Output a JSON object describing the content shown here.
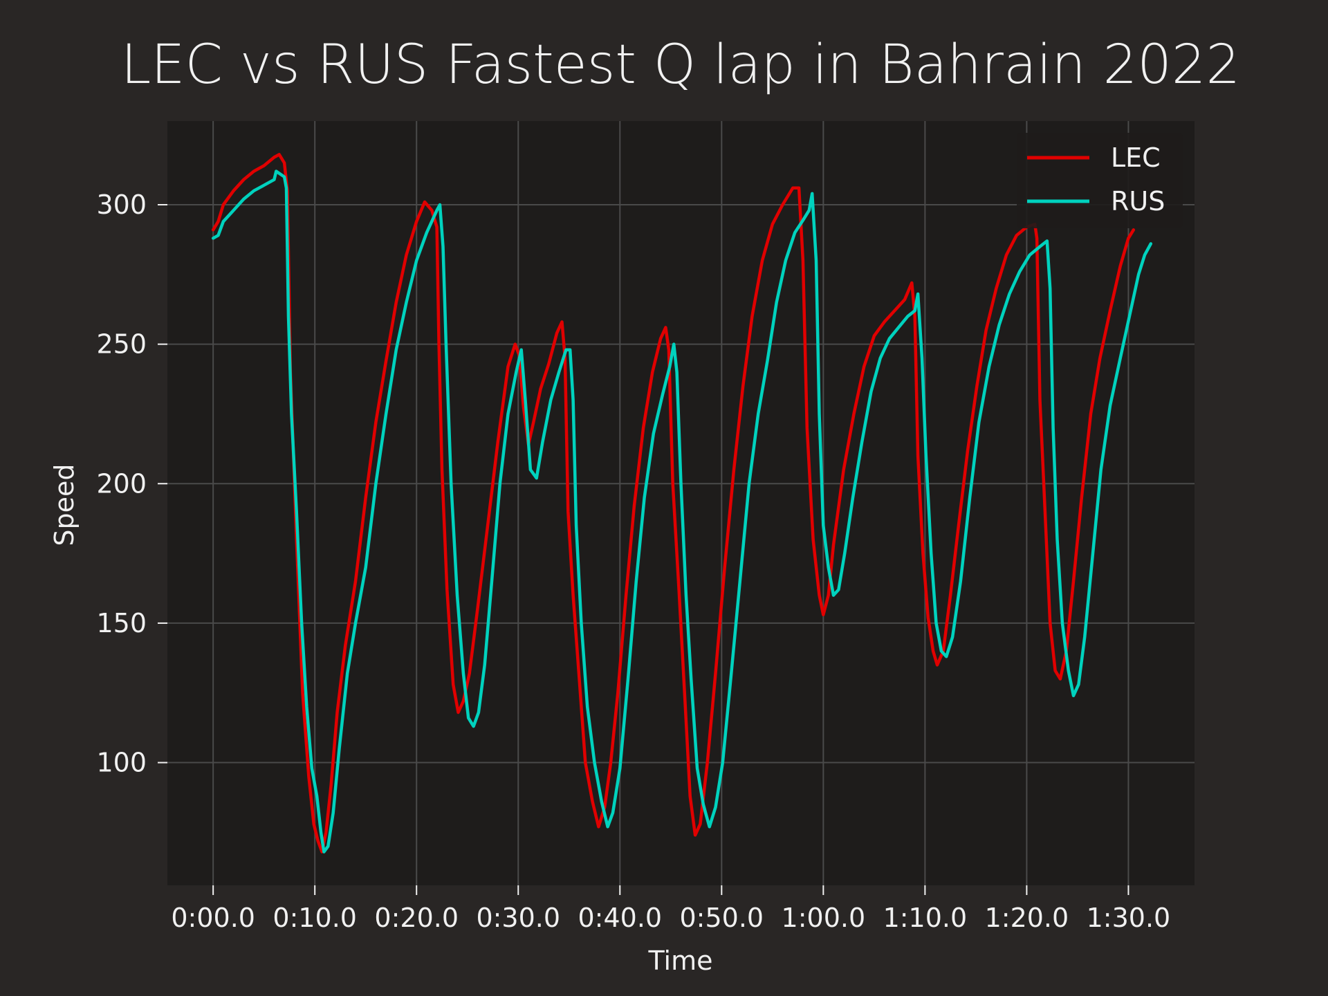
{
  "chart_data": {
    "type": "line",
    "title": "LEC vs RUS Fastest Q lap in Bahrain 2022",
    "xlabel": "Time",
    "ylabel": "Speed",
    "x_unit": "seconds",
    "xlim": [
      -4.5,
      96.5
    ],
    "ylim": [
      56,
      330
    ],
    "xticks": [
      0,
      10,
      20,
      30,
      40,
      50,
      60,
      70,
      80,
      90
    ],
    "xtick_labels": [
      "0:00.0",
      "0:10.0",
      "0:20.0",
      "0:30.0",
      "0:40.0",
      "0:50.0",
      "1:00.0",
      "1:10.0",
      "1:20.0",
      "1:30.0"
    ],
    "yticks": [
      100,
      150,
      200,
      250,
      300
    ],
    "ytick_labels": [
      "100",
      "150",
      "200",
      "250",
      "300"
    ],
    "grid": true,
    "legend_position": "top-right",
    "series": [
      {
        "name": "LEC",
        "color": "#e00000",
        "points": [
          [
            0,
            291
          ],
          [
            0.5,
            294
          ],
          [
            1,
            300
          ],
          [
            2,
            305
          ],
          [
            3,
            309
          ],
          [
            4,
            312
          ],
          [
            5,
            314
          ],
          [
            6,
            317
          ],
          [
            6.5,
            318
          ],
          [
            7,
            315
          ],
          [
            7.3,
            305
          ],
          [
            7.6,
            240
          ],
          [
            8.2,
            180
          ],
          [
            8.8,
            125
          ],
          [
            9.4,
            95
          ],
          [
            9.9,
            78
          ],
          [
            10.3,
            72
          ],
          [
            10.7,
            68
          ],
          [
            11.1,
            75
          ],
          [
            11.6,
            92
          ],
          [
            12.2,
            118
          ],
          [
            13,
            142
          ],
          [
            14,
            165
          ],
          [
            15,
            195
          ],
          [
            16,
            222
          ],
          [
            17,
            244
          ],
          [
            18,
            265
          ],
          [
            19,
            282
          ],
          [
            20,
            294
          ],
          [
            20.8,
            301
          ],
          [
            21.5,
            298
          ],
          [
            22,
            292
          ],
          [
            22.2,
            250
          ],
          [
            22.5,
            205
          ],
          [
            23,
            162
          ],
          [
            23.6,
            128
          ],
          [
            24.1,
            118
          ],
          [
            24.6,
            122
          ],
          [
            25.2,
            132
          ],
          [
            26,
            155
          ],
          [
            27,
            185
          ],
          [
            28,
            215
          ],
          [
            29,
            242
          ],
          [
            29.7,
            250
          ],
          [
            30.1,
            246
          ],
          [
            30.5,
            228
          ],
          [
            31,
            214
          ],
          [
            31.5,
            222
          ],
          [
            32.2,
            234
          ],
          [
            33,
            243
          ],
          [
            33.8,
            254
          ],
          [
            34.3,
            258
          ],
          [
            34.6,
            245
          ],
          [
            34.9,
            190
          ],
          [
            35.4,
            160
          ],
          [
            36,
            130
          ],
          [
            36.6,
            100
          ],
          [
            37.3,
            86
          ],
          [
            37.9,
            77
          ],
          [
            38.5,
            84
          ],
          [
            39.1,
            100
          ],
          [
            39.8,
            125
          ],
          [
            40.6,
            160
          ],
          [
            41.4,
            192
          ],
          [
            42.3,
            220
          ],
          [
            43.2,
            240
          ],
          [
            44,
            252
          ],
          [
            44.5,
            256
          ],
          [
            44.8,
            248
          ],
          [
            45.2,
            200
          ],
          [
            45.8,
            162
          ],
          [
            46.4,
            122
          ],
          [
            46.9,
            88
          ],
          [
            47.4,
            74
          ],
          [
            47.9,
            78
          ],
          [
            48.6,
            100
          ],
          [
            49.4,
            132
          ],
          [
            50.3,
            170
          ],
          [
            51.2,
            205
          ],
          [
            52.1,
            235
          ],
          [
            53,
            260
          ],
          [
            54,
            280
          ],
          [
            55,
            293
          ],
          [
            56,
            300
          ],
          [
            57,
            306
          ],
          [
            57.6,
            306
          ],
          [
            58,
            280
          ],
          [
            58.4,
            220
          ],
          [
            59,
            180
          ],
          [
            59.6,
            160
          ],
          [
            60,
            153
          ],
          [
            60.5,
            160
          ],
          [
            61,
            178
          ],
          [
            62,
            205
          ],
          [
            63,
            225
          ],
          [
            64,
            242
          ],
          [
            65,
            253
          ],
          [
            66,
            258
          ],
          [
            67,
            262
          ],
          [
            68,
            266
          ],
          [
            68.7,
            272
          ],
          [
            69,
            260
          ],
          [
            69.3,
            210
          ],
          [
            69.8,
            175
          ],
          [
            70.3,
            152
          ],
          [
            70.8,
            140
          ],
          [
            71.2,
            135
          ],
          [
            71.8,
            140
          ],
          [
            72.5,
            160
          ],
          [
            73.3,
            185
          ],
          [
            74.2,
            212
          ],
          [
            75.1,
            235
          ],
          [
            76,
            255
          ],
          [
            77,
            270
          ],
          [
            78,
            282
          ],
          [
            79,
            289
          ],
          [
            80,
            292
          ],
          [
            80.8,
            293
          ],
          [
            81,
            288
          ],
          [
            81.3,
            230
          ],
          [
            81.8,
            190
          ],
          [
            82.3,
            150
          ],
          [
            82.8,
            133
          ],
          [
            83.3,
            130
          ],
          [
            83.9,
            140
          ],
          [
            84.6,
            165
          ],
          [
            85.4,
            195
          ],
          [
            86.3,
            225
          ],
          [
            87.2,
            245
          ],
          [
            88.2,
            262
          ],
          [
            89.2,
            278
          ],
          [
            90,
            288
          ],
          [
            90.5,
            291
          ]
        ]
      },
      {
        "name": "RUS",
        "color": "#00d2be",
        "points": [
          [
            0,
            288
          ],
          [
            0.5,
            289
          ],
          [
            1,
            294
          ],
          [
            2,
            298
          ],
          [
            3,
            302
          ],
          [
            4,
            305
          ],
          [
            5,
            307
          ],
          [
            6,
            309
          ],
          [
            6.2,
            312
          ],
          [
            7,
            310
          ],
          [
            7.2,
            306
          ],
          [
            7.4,
            260
          ],
          [
            7.7,
            225
          ],
          [
            8.2,
            190
          ],
          [
            8.7,
            150
          ],
          [
            9.2,
            120
          ],
          [
            9.7,
            98
          ],
          [
            10.2,
            88
          ],
          [
            10.6,
            75
          ],
          [
            10.9,
            68
          ],
          [
            11.3,
            70
          ],
          [
            11.8,
            82
          ],
          [
            12.4,
            105
          ],
          [
            13.2,
            132
          ],
          [
            14,
            150
          ],
          [
            15,
            170
          ],
          [
            16,
            200
          ],
          [
            17,
            225
          ],
          [
            18,
            248
          ],
          [
            19,
            265
          ],
          [
            20,
            280
          ],
          [
            21,
            290
          ],
          [
            22,
            298
          ],
          [
            22.3,
            300
          ],
          [
            22.6,
            285
          ],
          [
            22.9,
            250
          ],
          [
            23.4,
            200
          ],
          [
            24,
            160
          ],
          [
            24.6,
            132
          ],
          [
            25.1,
            116
          ],
          [
            25.6,
            113
          ],
          [
            26.1,
            118
          ],
          [
            26.7,
            135
          ],
          [
            27.4,
            165
          ],
          [
            28.2,
            200
          ],
          [
            29,
            225
          ],
          [
            29.8,
            240
          ],
          [
            30.3,
            248
          ],
          [
            30.7,
            230
          ],
          [
            31.2,
            205
          ],
          [
            31.8,
            202
          ],
          [
            32.4,
            215
          ],
          [
            33.2,
            230
          ],
          [
            34,
            240
          ],
          [
            34.7,
            248
          ],
          [
            35.1,
            248
          ],
          [
            35.4,
            230
          ],
          [
            35.7,
            185
          ],
          [
            36.2,
            150
          ],
          [
            36.8,
            120
          ],
          [
            37.5,
            100
          ],
          [
            38.2,
            86
          ],
          [
            38.8,
            77
          ],
          [
            39.3,
            82
          ],
          [
            40,
            98
          ],
          [
            40.8,
            130
          ],
          [
            41.6,
            165
          ],
          [
            42.4,
            195
          ],
          [
            43.3,
            218
          ],
          [
            44.2,
            232
          ],
          [
            44.9,
            242
          ],
          [
            45.3,
            250
          ],
          [
            45.6,
            240
          ],
          [
            46,
            200
          ],
          [
            46.5,
            160
          ],
          [
            47,
            130
          ],
          [
            47.6,
            98
          ],
          [
            48.2,
            85
          ],
          [
            48.8,
            77
          ],
          [
            49.4,
            84
          ],
          [
            50.1,
            100
          ],
          [
            50.9,
            130
          ],
          [
            51.8,
            165
          ],
          [
            52.7,
            200
          ],
          [
            53.6,
            225
          ],
          [
            54.5,
            244
          ],
          [
            55.4,
            265
          ],
          [
            56.3,
            280
          ],
          [
            57.2,
            290
          ],
          [
            58.1,
            295
          ],
          [
            58.6,
            298
          ],
          [
            58.9,
            304
          ],
          [
            59.3,
            280
          ],
          [
            59.6,
            225
          ],
          [
            60,
            185
          ],
          [
            60.5,
            170
          ],
          [
            61,
            160
          ],
          [
            61.5,
            162
          ],
          [
            62.1,
            175
          ],
          [
            62.9,
            195
          ],
          [
            63.8,
            215
          ],
          [
            64.7,
            233
          ],
          [
            65.6,
            245
          ],
          [
            66.5,
            252
          ],
          [
            67.4,
            256
          ],
          [
            68.3,
            260
          ],
          [
            69,
            262
          ],
          [
            69.3,
            268
          ],
          [
            69.7,
            245
          ],
          [
            70.1,
            210
          ],
          [
            70.6,
            175
          ],
          [
            71.1,
            150
          ],
          [
            71.6,
            140
          ],
          [
            72.1,
            138
          ],
          [
            72.7,
            145
          ],
          [
            73.5,
            165
          ],
          [
            74.4,
            195
          ],
          [
            75.3,
            222
          ],
          [
            76.3,
            242
          ],
          [
            77.3,
            257
          ],
          [
            78.3,
            268
          ],
          [
            79.3,
            276
          ],
          [
            80.3,
            282
          ],
          [
            81.3,
            285
          ],
          [
            82,
            287
          ],
          [
            82.3,
            270
          ],
          [
            82.6,
            220
          ],
          [
            83,
            180
          ],
          [
            83.5,
            150
          ],
          [
            84.1,
            133
          ],
          [
            84.6,
            124
          ],
          [
            85.1,
            128
          ],
          [
            85.7,
            145
          ],
          [
            86.5,
            175
          ],
          [
            87.3,
            205
          ],
          [
            88.2,
            228
          ],
          [
            89.2,
            245
          ],
          [
            90.1,
            260
          ],
          [
            91,
            275
          ],
          [
            91.6,
            282
          ],
          [
            92.2,
            286
          ]
        ]
      }
    ]
  },
  "colors": {
    "figure_bg": "#292625",
    "axes_bg": "#1e1c1b",
    "grid": "#4a4a4a",
    "text": "#f1f1f1"
  }
}
